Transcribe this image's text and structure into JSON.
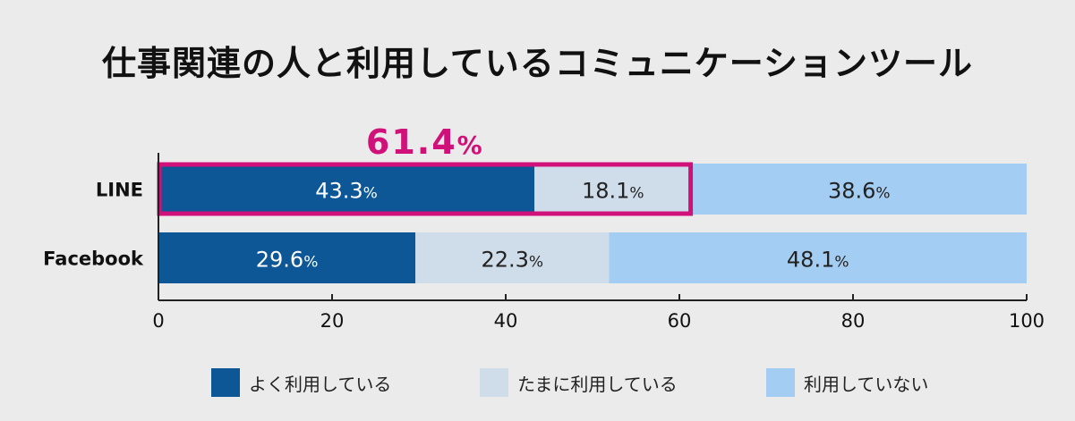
{
  "chart_data": {
    "type": "bar",
    "orientation": "horizontal",
    "stacked": true,
    "title": "仕事関連の人と利用しているコミュニケーションツール",
    "categories": [
      "LINE",
      "Facebook"
    ],
    "series": [
      {
        "name": "よく利用している",
        "values": [
          43.3,
          29.6
        ],
        "color": "#0d5796"
      },
      {
        "name": "たまに利用している",
        "values": [
          18.1,
          22.3
        ],
        "color": "#cfdcea"
      },
      {
        "name": "利用していない",
        "values": [
          38.6,
          48.1
        ],
        "color": "#a3cdf2"
      }
    ],
    "xlim": [
      0,
      100
    ],
    "xticks": [
      0,
      20,
      40,
      60,
      80,
      100
    ],
    "unit": "%",
    "grid": false,
    "legend": "bottom",
    "highlight": {
      "category": "LINE",
      "series_span": [
        "よく利用している",
        "たまに利用している"
      ],
      "label": "61.4%",
      "value": "61.4",
      "unit": "%",
      "color": "#d1117a"
    }
  }
}
